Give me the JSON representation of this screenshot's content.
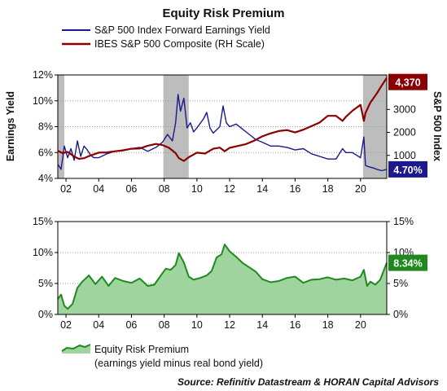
{
  "title": "Equity Risk Premium",
  "source": "Source: Refinitiv Datastream & HORAN Capital Advisors",
  "colors": {
    "yield": "#1a1a8c",
    "sp": "#8b0000",
    "erp_line": "#1e8a1e",
    "erp_fill": "#9fd49f",
    "recession": "#bdbdbd"
  },
  "top_legend": {
    "series1": "S&P 500 Index Forward Earnings Yield",
    "series2": "IBES S&P 500 Composite (RH Scale)"
  },
  "bottom_legend": {
    "line1": "Equity Risk Premium",
    "line2": "(earnings yield minus real bond yield)"
  },
  "chart_data": [
    {
      "type": "line",
      "ylabel": "Earnings Yield",
      "y2label": "S&P 500 Index",
      "ylim": [
        4,
        12
      ],
      "y2lim": [
        0,
        4500
      ],
      "xlim": [
        2001.5,
        2021.6
      ],
      "y_ticks": [
        "4%",
        "6%",
        "8%",
        "10%",
        "12%"
      ],
      "y2_ticks": [
        "1000",
        "2000",
        "3000"
      ],
      "x_ticks": [
        "02",
        "04",
        "06",
        "08",
        "10",
        "12",
        "14",
        "16",
        "18",
        "20"
      ],
      "recessions": [
        [
          2001.5,
          2001.9
        ],
        [
          2007.95,
          2009.5
        ],
        [
          2020.15,
          2021.6
        ]
      ],
      "end_labels": {
        "sp": "4,370",
        "yield": "4.70%"
      },
      "series": [
        {
          "name": "S&P 500 Index Forward Earnings Yield",
          "axis": "left",
          "x": [
            2001.5,
            2001.7,
            2001.9,
            2002.1,
            2002.3,
            2002.5,
            2002.7,
            2002.9,
            2003.1,
            2003.3,
            2003.5,
            2003.7,
            2004.0,
            2004.5,
            2005.0,
            2005.5,
            2006.0,
            2006.5,
            2007.0,
            2007.5,
            2007.9,
            2008.2,
            2008.5,
            2008.7,
            2008.85,
            2009.0,
            2009.2,
            2009.4,
            2009.6,
            2009.8,
            2010.0,
            2010.4,
            2010.6,
            2010.8,
            2011.0,
            2011.4,
            2011.6,
            2011.8,
            2012.0,
            2012.4,
            2012.8,
            2013.2,
            2013.6,
            2014.0,
            2014.5,
            2015.0,
            2015.5,
            2016.0,
            2016.5,
            2017.0,
            2017.5,
            2018.0,
            2018.5,
            2018.9,
            2019.1,
            2019.5,
            2020.0,
            2020.2,
            2020.3,
            2020.5,
            2020.8,
            2021.0,
            2021.3,
            2021.6
          ],
          "values": [
            5.1,
            4.7,
            6.5,
            5.6,
            6.3,
            5.4,
            6.9,
            5.7,
            6.5,
            6.2,
            5.8,
            5.6,
            5.6,
            5.9,
            6.1,
            6.2,
            6.3,
            6.4,
            6.1,
            6.4,
            6.8,
            7.4,
            6.9,
            8.3,
            10.5,
            9.2,
            10.2,
            7.9,
            8.3,
            7.6,
            7.9,
            8.6,
            9.1,
            7.9,
            7.5,
            8.0,
            9.6,
            8.3,
            8.0,
            8.2,
            7.8,
            7.4,
            7.0,
            6.8,
            6.5,
            6.5,
            6.4,
            6.2,
            6.3,
            5.9,
            5.7,
            5.5,
            5.5,
            6.3,
            6.0,
            6.0,
            5.6,
            7.2,
            5.0,
            4.9,
            4.8,
            4.7,
            4.6,
            4.7
          ]
        },
        {
          "name": "IBES S&P 500 Composite (RH Scale)",
          "axis": "right",
          "x": [
            2001.5,
            2001.8,
            2002.1,
            2002.5,
            2002.8,
            2003.1,
            2003.5,
            2004.0,
            2004.5,
            2005.0,
            2005.5,
            2006.0,
            2006.5,
            2007.0,
            2007.5,
            2007.9,
            2008.3,
            2008.7,
            2008.9,
            2009.2,
            2009.5,
            2010.0,
            2010.5,
            2011.0,
            2011.4,
            2011.7,
            2012.0,
            2012.5,
            2013.0,
            2013.5,
            2014.0,
            2014.5,
            2015.0,
            2015.5,
            2016.0,
            2016.5,
            2017.0,
            2017.5,
            2018.0,
            2018.5,
            2018.9,
            2019.1,
            2019.5,
            2020.0,
            2020.2,
            2020.3,
            2020.6,
            2021.0,
            2021.3,
            2021.6
          ],
          "values": [
            1200,
            1100,
            1150,
            950,
            850,
            880,
            1000,
            1120,
            1130,
            1180,
            1220,
            1290,
            1300,
            1420,
            1500,
            1450,
            1330,
            1100,
            880,
            760,
            920,
            1120,
            1080,
            1290,
            1340,
            1180,
            1330,
            1410,
            1490,
            1640,
            1830,
            1960,
            2060,
            2100,
            2000,
            2120,
            2270,
            2430,
            2720,
            2720,
            2500,
            2680,
            2940,
            3200,
            2500,
            2850,
            3300,
            3700,
            4050,
            4370
          ]
        }
      ]
    },
    {
      "type": "area",
      "ylim": [
        0,
        15
      ],
      "xlim": [
        2001.5,
        2021.6
      ],
      "y_ticks": [
        "0%",
        "5%",
        "10%",
        "15%"
      ],
      "x_ticks": [
        "02",
        "04",
        "06",
        "08",
        "10",
        "12",
        "14",
        "16",
        "18",
        "20"
      ],
      "end_label": "8.34%",
      "series": [
        {
          "name": "Equity Risk Premium",
          "x": [
            2001.5,
            2001.7,
            2001.9,
            2002.1,
            2002.4,
            2002.7,
            2003.0,
            2003.4,
            2003.8,
            2004.2,
            2004.6,
            2005.0,
            2005.5,
            2006.0,
            2006.5,
            2007.0,
            2007.4,
            2007.8,
            2008.1,
            2008.4,
            2008.7,
            2008.9,
            2009.2,
            2009.5,
            2009.8,
            2010.2,
            2010.6,
            2010.9,
            2011.2,
            2011.5,
            2011.7,
            2012.0,
            2012.4,
            2012.8,
            2013.2,
            2013.6,
            2014.0,
            2014.5,
            2015.0,
            2015.5,
            2016.0,
            2016.5,
            2017.0,
            2017.5,
            2018.0,
            2018.5,
            2019.0,
            2019.5,
            2020.0,
            2020.2,
            2020.4,
            2020.6,
            2020.9,
            2021.2,
            2021.6
          ],
          "values": [
            2.5,
            3.2,
            1.4,
            0.9,
            1.7,
            4.3,
            5.3,
            6.3,
            4.9,
            6.1,
            4.6,
            5.9,
            5.4,
            5.1,
            5.8,
            4.6,
            4.8,
            6.3,
            7.4,
            7.2,
            8.0,
            9.9,
            8.4,
            6.1,
            5.6,
            5.9,
            6.3,
            7.0,
            9.2,
            9.7,
            11.3,
            10.2,
            9.3,
            8.3,
            7.6,
            6.9,
            5.7,
            5.2,
            5.4,
            5.9,
            6.1,
            5.1,
            5.6,
            5.7,
            6.0,
            5.6,
            5.8,
            5.5,
            6.1,
            7.2,
            4.6,
            5.3,
            4.8,
            5.6,
            8.34
          ]
        }
      ]
    }
  ]
}
